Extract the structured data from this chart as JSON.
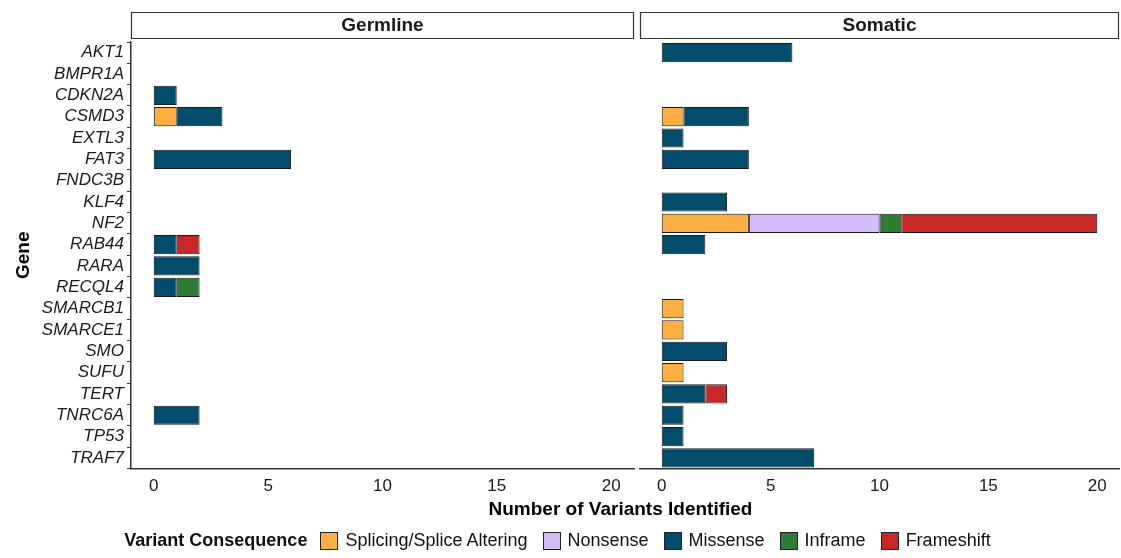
{
  "chart_data": [
    {
      "type": "bar",
      "orientation": "horizontal",
      "stacked": true,
      "title": "Germline",
      "ylabel": "Gene",
      "xlabel": "Number of Variants Identified",
      "legend_title": "Variant Consequence",
      "legend": "bottom",
      "grid": false,
      "categories": [
        "AKT1",
        "BMPR1A",
        "CDKN2A",
        "CSMD3",
        "EXTL3",
        "FAT3",
        "FNDC3B",
        "KLF4",
        "NF2",
        "RAB44",
        "RARA",
        "RECQL4",
        "SMARCB1",
        "SMARCE1",
        "SMO",
        "SUFU",
        "TERT",
        "TNRC6A",
        "TP53",
        "TRAF7"
      ],
      "xlim": [
        -1,
        21
      ],
      "xticks": [
        0,
        5,
        10,
        15,
        20
      ],
      "series": [
        {
          "name": "Splicing/Splice Altering",
          "color": "#ffae42",
          "values": [
            null,
            null,
            null,
            1,
            null,
            null,
            null,
            null,
            null,
            null,
            null,
            null,
            null,
            null,
            null,
            null,
            null,
            null,
            null,
            null
          ]
        },
        {
          "name": "Nonsense",
          "color": "#d5bcfb",
          "values": [
            null,
            null,
            null,
            null,
            null,
            null,
            null,
            null,
            null,
            null,
            null,
            null,
            null,
            null,
            null,
            null,
            null,
            null,
            null,
            null
          ]
        },
        {
          "name": "Missense",
          "color": "#004c6d",
          "values": [
            null,
            null,
            1,
            2,
            null,
            6,
            null,
            null,
            null,
            1,
            2,
            1,
            null,
            null,
            null,
            null,
            null,
            2,
            null,
            null
          ]
        },
        {
          "name": "Inframe",
          "color": "#2e7d32",
          "values": [
            null,
            null,
            null,
            null,
            null,
            null,
            null,
            null,
            null,
            null,
            null,
            1,
            null,
            null,
            null,
            null,
            null,
            null,
            null,
            null
          ]
        },
        {
          "name": "Frameshift",
          "color": "#c62828",
          "values": [
            null,
            null,
            null,
            null,
            null,
            null,
            null,
            null,
            null,
            1,
            null,
            null,
            null,
            null,
            null,
            null,
            null,
            null,
            null,
            null
          ]
        }
      ]
    },
    {
      "type": "bar",
      "orientation": "horizontal",
      "stacked": true,
      "title": "Somatic",
      "tick_labels": "x",
      "grid": false,
      "categories": [
        null,
        null,
        null,
        null,
        null,
        null,
        null,
        null,
        null,
        null,
        null,
        null,
        null,
        null,
        null,
        null,
        null,
        null,
        null,
        null
      ],
      "xlim": [
        -1,
        21
      ],
      "xticks": [
        0,
        5,
        10,
        15,
        20
      ],
      "series": [
        {
          "color": "#ffae42",
          "values": [
            null,
            null,
            null,
            1,
            null,
            null,
            null,
            null,
            4,
            null,
            null,
            null,
            1,
            1,
            null,
            1,
            null,
            null,
            null,
            null
          ]
        },
        {
          "color": "#d5bcfb",
          "values": [
            null,
            null,
            null,
            null,
            null,
            null,
            null,
            null,
            6,
            null,
            null,
            null,
            null,
            null,
            null,
            null,
            null,
            null,
            null,
            null
          ]
        },
        {
          "color": "#004c6d",
          "values": [
            6,
            null,
            null,
            3,
            1,
            4,
            null,
            3,
            null,
            2,
            null,
            null,
            null,
            null,
            3,
            null,
            2,
            1,
            1,
            7
          ]
        },
        {
          "color": "#2e7d32",
          "values": [
            null,
            null,
            null,
            null,
            null,
            null,
            null,
            null,
            1,
            null,
            null,
            null,
            null,
            null,
            null,
            null,
            null,
            null,
            null,
            null
          ]
        },
        {
          "color": "#c62828",
          "values": [
            null,
            null,
            null,
            null,
            null,
            null,
            null,
            null,
            9,
            null,
            null,
            null,
            null,
            null,
            null,
            null,
            1,
            null,
            null,
            null
          ]
        }
      ]
    }
  ]
}
